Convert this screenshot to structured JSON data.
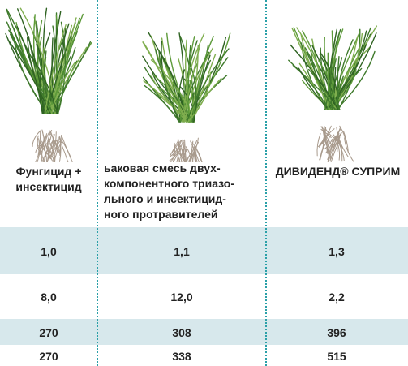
{
  "table": {
    "headers": [
      [
        "Фунгицид +",
        "инсектицид"
      ],
      [
        "ьаковая смесь двух-",
        "компонентного триазо-",
        "льного и инсектицид-",
        "ного протравителей"
      ],
      [
        "ДИВИДЕНД® СУПРИМ"
      ]
    ],
    "rows": [
      [
        "1,0",
        "1,1",
        "1,3"
      ],
      [
        "8,0",
        "12,0",
        "2,2"
      ],
      [
        "270",
        "308",
        "396"
      ],
      [
        "270",
        "338",
        "515"
      ]
    ]
  }
}
